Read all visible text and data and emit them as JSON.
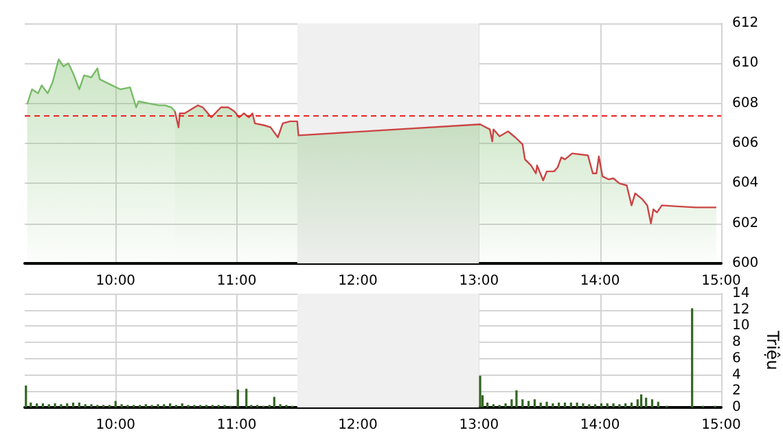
{
  "chart_data": [
    {
      "type": "area",
      "xlim": [
        9.25,
        15
      ],
      "ylim": [
        600,
        612
      ],
      "xticks": [
        {
          "value": 10,
          "label": "10:00"
        },
        {
          "value": 11,
          "label": "11:00"
        },
        {
          "value": 12,
          "label": "12:00"
        },
        {
          "value": 13,
          "label": "13:00"
        },
        {
          "value": 14,
          "label": "14:00"
        },
        {
          "value": 15,
          "label": "15:00"
        }
      ],
      "yticks": [
        600,
        602,
        604,
        606,
        608,
        610,
        612
      ],
      "grid": true,
      "marker": "none",
      "line_style": "solid",
      "series": [
        {
          "color": "#77bb66",
          "x": [
            9.27,
            9.31,
            9.36,
            9.39,
            9.44,
            9.48,
            9.53,
            9.57,
            9.61,
            9.65,
            9.7,
            9.74,
            9.8,
            9.85,
            9.87,
            9.97,
            10.04,
            10.12,
            10.17,
            10.19,
            10.27,
            10.36,
            10.41,
            10.46,
            10.49
          ],
          "values": [
            607.95,
            608.7,
            608.5,
            608.9,
            608.5,
            609.05,
            610.2,
            609.85,
            610.0,
            609.5,
            608.7,
            609.4,
            609.3,
            609.75,
            609.2,
            608.9,
            608.7,
            608.8,
            607.8,
            608.1,
            608.0,
            607.9,
            607.9,
            607.8,
            607.6
          ]
        },
        {
          "color": "#cc4444",
          "x": [
            10.49,
            10.52,
            10.53,
            10.57,
            10.68,
            10.72,
            10.79,
            10.87,
            10.93,
            10.98,
            11.02,
            11.06,
            11.1,
            11.13,
            11.15,
            11.23,
            11.28,
            11.34,
            11.38,
            11.44,
            11.5,
            11.51,
            13.01,
            13.09,
            13.11,
            13.12,
            13.17,
            13.24,
            13.3,
            13.36,
            13.38,
            13.43,
            13.47,
            13.48,
            13.53,
            13.56,
            13.62,
            13.65,
            13.68,
            13.71,
            13.77,
            13.9,
            13.94,
            13.97,
            13.99,
            14.02,
            14.07,
            14.11,
            14.16,
            14.22,
            14.26,
            14.29,
            14.35,
            14.39,
            14.42,
            14.44,
            14.47,
            14.51,
            14.64,
            14.79,
            14.96
          ],
          "values": [
            607.6,
            606.8,
            607.5,
            607.5,
            607.9,
            607.8,
            607.3,
            607.8,
            607.8,
            607.6,
            607.3,
            607.5,
            607.3,
            607.5,
            607.0,
            606.9,
            606.8,
            606.3,
            607.0,
            607.1,
            607.1,
            606.4,
            606.95,
            606.7,
            606.1,
            606.7,
            606.35,
            606.6,
            606.3,
            605.95,
            605.2,
            604.9,
            604.5,
            604.9,
            604.15,
            604.6,
            604.6,
            604.8,
            605.3,
            605.2,
            605.5,
            605.4,
            604.5,
            604.5,
            605.35,
            604.35,
            604.2,
            604.25,
            604.0,
            603.9,
            602.9,
            603.5,
            603.2,
            602.9,
            602.0,
            602.7,
            602.55,
            602.9,
            602.85,
            602.8,
            602.8
          ]
        }
      ],
      "ref_lines": [
        {
          "axis": "y",
          "value": 607.4,
          "color": "#ee2222",
          "line_style": "dashed"
        }
      ],
      "bands": [
        {
          "axis": "x",
          "from": 11.5,
          "to": 13,
          "color": "#f0f0f0"
        }
      ]
    },
    {
      "type": "bar",
      "ylabel": "Triệu",
      "xlim": [
        9.25,
        15
      ],
      "ylim": [
        0,
        14
      ],
      "xticks": [
        {
          "value": 10,
          "label": "10:00"
        },
        {
          "value": 11,
          "label": "11:00"
        },
        {
          "value": 12,
          "label": "12:00"
        },
        {
          "value": 13,
          "label": "13:00"
        },
        {
          "value": 14,
          "label": "14:00"
        },
        {
          "value": 15,
          "label": "15:00"
        }
      ],
      "yticks": [
        0,
        2,
        4,
        6,
        8,
        10,
        12,
        14
      ],
      "grid": true,
      "series": [
        {
          "color": "#336622",
          "x": [
            9.26,
            9.3,
            9.35,
            9.4,
            9.45,
            9.5,
            9.55,
            9.6,
            9.65,
            9.7,
            9.75,
            9.8,
            9.85,
            9.9,
            9.95,
            10.0,
            10.05,
            10.1,
            10.15,
            10.2,
            10.25,
            10.3,
            10.35,
            10.4,
            10.45,
            10.5,
            10.55,
            10.6,
            10.65,
            10.7,
            10.75,
            10.8,
            10.85,
            10.9,
            10.95,
            11.01,
            11.08,
            11.12,
            11.17,
            11.22,
            11.27,
            11.31,
            11.36,
            11.41,
            11.46,
            13.01,
            13.03,
            13.07,
            13.12,
            13.17,
            13.22,
            13.27,
            13.31,
            13.36,
            13.41,
            13.46,
            13.51,
            13.56,
            13.61,
            13.66,
            13.71,
            13.76,
            13.81,
            13.86,
            13.91,
            13.96,
            14.01,
            14.06,
            14.11,
            14.16,
            14.21,
            14.26,
            14.31,
            14.34,
            14.38,
            14.43,
            14.48,
            14.55,
            14.76,
            14.85,
            14.95
          ],
          "values": [
            2.7,
            0.6,
            0.5,
            0.5,
            0.4,
            0.5,
            0.4,
            0.5,
            0.6,
            0.6,
            0.4,
            0.4,
            0.3,
            0.3,
            0.3,
            0.8,
            0.4,
            0.3,
            0.3,
            0.3,
            0.4,
            0.3,
            0.4,
            0.4,
            0.5,
            0.3,
            0.5,
            0.3,
            0.3,
            0.3,
            0.3,
            0.3,
            0.3,
            0.3,
            0.2,
            2.2,
            2.3,
            0.3,
            0.3,
            0.2,
            0.3,
            1.3,
            0.4,
            0.3,
            0.2,
            3.9,
            1.5,
            0.6,
            0.4,
            0.3,
            0.5,
            1.0,
            2.1,
            1.0,
            0.8,
            1.0,
            0.6,
            0.7,
            0.5,
            0.6,
            0.6,
            0.6,
            0.6,
            0.5,
            0.4,
            0.4,
            0.5,
            0.5,
            0.5,
            0.4,
            0.5,
            0.6,
            1.0,
            1.6,
            1.2,
            1.0,
            0.7,
            0.2,
            12.2,
            0.2,
            0.2
          ]
        }
      ],
      "bands": [
        {
          "axis": "x",
          "from": 11.5,
          "to": 13,
          "color": "#f0f0f0"
        }
      ]
    }
  ]
}
